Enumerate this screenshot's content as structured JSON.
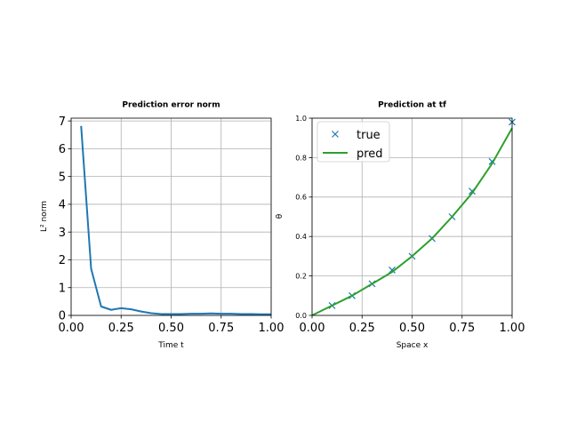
{
  "chart_data": [
    {
      "type": "line",
      "title": "Prediction error norm",
      "xlabel": "Time t",
      "ylabel": "L² norm",
      "xlim": [
        0.0,
        1.0
      ],
      "ylim": [
        0,
        7.1
      ],
      "grid": true,
      "xticks": [
        "0.00",
        "0.25",
        "0.50",
        "0.75",
        "1.00"
      ],
      "yticks": [
        "0",
        "1",
        "2",
        "3",
        "4",
        "5",
        "6",
        "7"
      ],
      "series": [
        {
          "color": "#1f77b4",
          "x": [
            0.05,
            0.1,
            0.15,
            0.2,
            0.25,
            0.3,
            0.35,
            0.4,
            0.45,
            0.5,
            0.55,
            0.6,
            0.65,
            0.7,
            0.75,
            0.8,
            0.85,
            0.9,
            0.95,
            1.0
          ],
          "y": [
            6.82,
            1.68,
            0.32,
            0.2,
            0.26,
            0.22,
            0.14,
            0.08,
            0.05,
            0.05,
            0.05,
            0.06,
            0.06,
            0.07,
            0.06,
            0.06,
            0.05,
            0.05,
            0.04,
            0.04
          ]
        }
      ]
    },
    {
      "type": "line",
      "title": "Prediction at tf",
      "xlabel": "Space x",
      "ylabel": "θ",
      "xlim": [
        0.0,
        1.0
      ],
      "ylim": [
        0.0,
        1.0
      ],
      "grid": true,
      "xticks": [
        "0.00",
        "0.25",
        "0.50",
        "0.75",
        "1.00"
      ],
      "yticks": [
        "0.0",
        "0.2",
        "0.4",
        "0.6",
        "0.8",
        "1.0"
      ],
      "legend_position": "top-left",
      "series": [
        {
          "name": "true",
          "style": "markers",
          "color": "#1f77b4",
          "x": [
            0.1,
            0.2,
            0.3,
            0.4,
            0.5,
            0.6,
            0.7,
            0.8,
            0.9,
            1.0
          ],
          "y": [
            0.05,
            0.1,
            0.16,
            0.23,
            0.3,
            0.39,
            0.5,
            0.63,
            0.78,
            0.98
          ]
        },
        {
          "name": "pred",
          "style": "line",
          "color": "#2ca02c",
          "x": [
            0.0,
            0.1,
            0.2,
            0.3,
            0.4,
            0.5,
            0.6,
            0.7,
            0.8,
            0.9,
            1.0
          ],
          "y": [
            0.0,
            0.05,
            0.1,
            0.16,
            0.22,
            0.3,
            0.39,
            0.5,
            0.62,
            0.77,
            0.95
          ]
        }
      ]
    }
  ]
}
